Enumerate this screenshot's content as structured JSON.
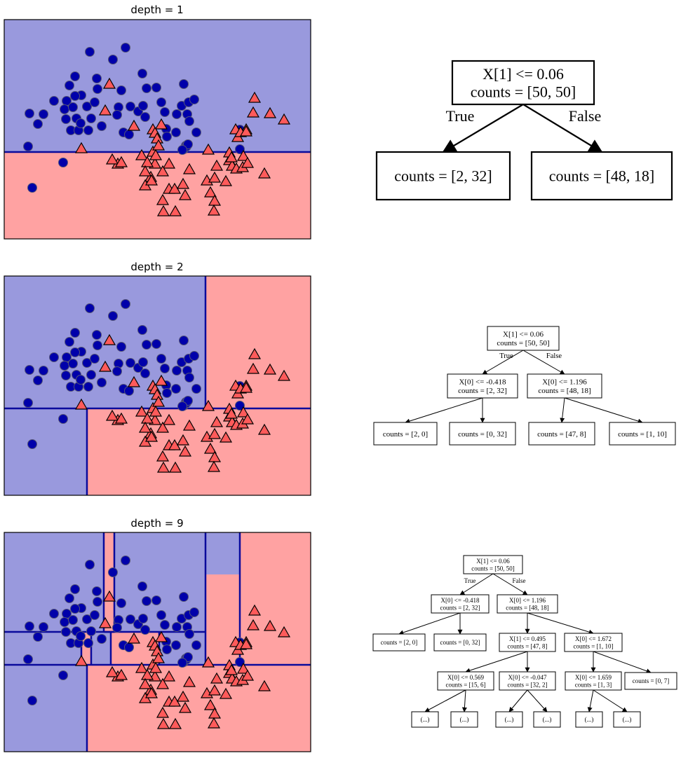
{
  "colors": {
    "blue_region": "#9999dd",
    "red_region": "#ffa2a2",
    "boundary": "#0a0a9c",
    "blue_point": "#0000aa",
    "red_point": "#ff5a5a",
    "marker_edge": "#000000"
  },
  "panels": [
    {
      "title": "depth = 1",
      "tree": {
        "nodes": [
          {
            "id": "n0",
            "lines": [
              "X[1] <= 0.06",
              "counts = [50, 50]"
            ]
          },
          {
            "id": "n1",
            "lines": [
              "counts = [2, 32]"
            ]
          },
          {
            "id": "n2",
            "lines": [
              "counts = [48, 18]"
            ]
          }
        ],
        "edges": [
          {
            "from": "n0",
            "to": "n1",
            "label": "True"
          },
          {
            "from": "n0",
            "to": "n2",
            "label": "False"
          }
        ]
      }
    },
    {
      "title": "depth = 2",
      "tree": {
        "nodes": [
          {
            "id": "n0",
            "lines": [
              "X[1] <= 0.06",
              "counts = [50, 50]"
            ]
          },
          {
            "id": "n1",
            "lines": [
              "X[0] <= -0.418",
              "counts = [2, 32]"
            ]
          },
          {
            "id": "n2",
            "lines": [
              "X[0] <= 1.196",
              "counts = [48, 18]"
            ]
          },
          {
            "id": "n3",
            "lines": [
              "counts = [2, 0]"
            ]
          },
          {
            "id": "n4",
            "lines": [
              "counts = [0, 32]"
            ]
          },
          {
            "id": "n5",
            "lines": [
              "counts = [47, 8]"
            ]
          },
          {
            "id": "n6",
            "lines": [
              "counts = [1, 10]"
            ]
          }
        ],
        "edges": [
          {
            "from": "n0",
            "to": "n1",
            "label": "True"
          },
          {
            "from": "n0",
            "to": "n2",
            "label": "False"
          },
          {
            "from": "n1",
            "to": "n3",
            "label": ""
          },
          {
            "from": "n1",
            "to": "n4",
            "label": ""
          },
          {
            "from": "n2",
            "to": "n5",
            "label": ""
          },
          {
            "from": "n2",
            "to": "n6",
            "label": ""
          }
        ]
      }
    },
    {
      "title": "depth = 9",
      "tree": {
        "nodes": [
          {
            "id": "n0",
            "lines": [
              "X[1] <= 0.06",
              "counts = [50, 50]"
            ]
          },
          {
            "id": "n1",
            "lines": [
              "X[0] <= -0.418",
              "counts = [2, 32]"
            ]
          },
          {
            "id": "n2",
            "lines": [
              "X[0] <= 1.196",
              "counts = [48, 18]"
            ]
          },
          {
            "id": "n3",
            "lines": [
              "counts = [2, 0]"
            ]
          },
          {
            "id": "n4",
            "lines": [
              "counts = [0, 32]"
            ]
          },
          {
            "id": "n5",
            "lines": [
              "X[1] <= 0.495",
              "counts = [47, 8]"
            ]
          },
          {
            "id": "n6",
            "lines": [
              "X[0] <= 1.672",
              "counts = [1, 10]"
            ]
          },
          {
            "id": "n7",
            "lines": [
              "X[0] <= 0.569",
              "counts = [15, 6]"
            ]
          },
          {
            "id": "n8",
            "lines": [
              "X[0] <= -0.047",
              "counts = [32, 2]"
            ]
          },
          {
            "id": "n9",
            "lines": [
              "X[0] <= 1.659",
              "counts = [1, 3]"
            ]
          },
          {
            "id": "n10",
            "lines": [
              "counts = [0, 7]"
            ]
          },
          {
            "id": "n11",
            "lines": [
              "(...)"
            ]
          },
          {
            "id": "n12",
            "lines": [
              "(...)"
            ]
          },
          {
            "id": "n13",
            "lines": [
              "(...)"
            ]
          },
          {
            "id": "n14",
            "lines": [
              "(...)"
            ]
          },
          {
            "id": "n15",
            "lines": [
              "(...)"
            ]
          },
          {
            "id": "n16",
            "lines": [
              "(...)"
            ]
          }
        ],
        "edges": [
          {
            "from": "n0",
            "to": "n1",
            "label": "True"
          },
          {
            "from": "n0",
            "to": "n2",
            "label": "False"
          },
          {
            "from": "n1",
            "to": "n3",
            "label": ""
          },
          {
            "from": "n1",
            "to": "n4",
            "label": ""
          },
          {
            "from": "n2",
            "to": "n5",
            "label": ""
          },
          {
            "from": "n2",
            "to": "n6",
            "label": ""
          },
          {
            "from": "n5",
            "to": "n7",
            "label": ""
          },
          {
            "from": "n5",
            "to": "n8",
            "label": ""
          },
          {
            "from": "n6",
            "to": "n9",
            "label": ""
          },
          {
            "from": "n6",
            "to": "n10",
            "label": ""
          },
          {
            "from": "n7",
            "to": "n11",
            "label": ""
          },
          {
            "from": "n7",
            "to": "n12",
            "label": ""
          },
          {
            "from": "n8",
            "to": "n13",
            "label": ""
          },
          {
            "from": "n8",
            "to": "n14",
            "label": ""
          },
          {
            "from": "n9",
            "to": "n15",
            "label": ""
          },
          {
            "from": "n9",
            "to": "n16",
            "label": ""
          }
        ]
      }
    }
  ]
}
